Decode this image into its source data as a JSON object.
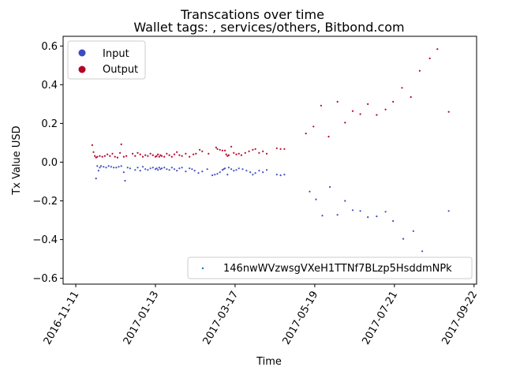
{
  "chart_data": {
    "type": "scatter",
    "title": "Transcations over time",
    "subtitle": "Wallet tags: , services/others, Bitbond.com",
    "xlabel": "Time",
    "ylabel": "Tx Value USD",
    "xlim": [
      "2016-11-01",
      "2017-09-24"
    ],
    "ylim": [
      -0.63,
      0.65
    ],
    "x_ticks": [
      "2016-11-11",
      "2017-01-13",
      "2017-03-17",
      "2017-05-19",
      "2017-07-21",
      "2017-09-22"
    ],
    "y_ticks": [
      -0.6,
      -0.4,
      -0.2,
      0.0,
      0.2,
      0.4,
      0.6
    ],
    "y_tick_labels": [
      "−0.6",
      "−0.4",
      "−0.2",
      "0.0",
      "0.2",
      "0.4",
      "0.6"
    ],
    "grid": false,
    "legend_series": {
      "placement": "top-left",
      "entries": [
        {
          "label": "Input",
          "color": "#3b4cc0"
        },
        {
          "label": "Output",
          "color": "#b40426"
        }
      ]
    },
    "legend_wallet": {
      "placement": "bottom-right",
      "label": "146nwWVzwsgVXeH1TTNf7BLzp5HsddmNPk",
      "color": "#1f77b4"
    },
    "series": [
      {
        "name": "Input",
        "color": "#3b4cc0",
        "points": [
          {
            "x": "2016-11-27",
            "y": -0.084
          },
          {
            "x": "2016-11-28",
            "y": -0.02
          },
          {
            "x": "2016-11-29",
            "y": -0.044
          },
          {
            "x": "2016-11-30",
            "y": -0.028
          },
          {
            "x": "2016-12-01",
            "y": -0.02
          },
          {
            "x": "2016-12-03",
            "y": -0.024
          },
          {
            "x": "2016-12-05",
            "y": -0.028
          },
          {
            "x": "2016-12-07",
            "y": -0.02
          },
          {
            "x": "2016-12-09",
            "y": -0.024
          },
          {
            "x": "2016-12-11",
            "y": -0.028
          },
          {
            "x": "2016-12-13",
            "y": -0.028
          },
          {
            "x": "2016-12-15",
            "y": -0.024
          },
          {
            "x": "2016-12-17",
            "y": -0.02
          },
          {
            "x": "2016-12-19",
            "y": -0.052
          },
          {
            "x": "2016-12-20",
            "y": -0.096
          },
          {
            "x": "2016-12-22",
            "y": -0.028
          },
          {
            "x": "2016-12-24",
            "y": -0.032
          },
          {
            "x": "2016-12-28",
            "y": -0.04
          },
          {
            "x": "2016-12-30",
            "y": -0.028
          },
          {
            "x": "2017-01-01",
            "y": -0.044
          },
          {
            "x": "2017-01-03",
            "y": -0.024
          },
          {
            "x": "2017-01-05",
            "y": -0.036
          },
          {
            "x": "2017-01-07",
            "y": -0.04
          },
          {
            "x": "2017-01-09",
            "y": -0.032
          },
          {
            "x": "2017-01-11",
            "y": -0.028
          },
          {
            "x": "2017-01-13",
            "y": -0.036
          },
          {
            "x": "2017-01-14",
            "y": -0.032
          },
          {
            "x": "2017-01-15",
            "y": -0.04
          },
          {
            "x": "2017-01-16",
            "y": -0.028
          },
          {
            "x": "2017-01-17",
            "y": -0.036
          },
          {
            "x": "2017-01-18",
            "y": -0.032
          },
          {
            "x": "2017-01-20",
            "y": -0.028
          },
          {
            "x": "2017-01-22",
            "y": -0.036
          },
          {
            "x": "2017-01-24",
            "y": -0.04
          },
          {
            "x": "2017-01-26",
            "y": -0.028
          },
          {
            "x": "2017-01-28",
            "y": -0.036
          },
          {
            "x": "2017-01-30",
            "y": -0.044
          },
          {
            "x": "2017-02-01",
            "y": -0.032
          },
          {
            "x": "2017-02-03",
            "y": -0.028
          },
          {
            "x": "2017-02-06",
            "y": -0.048
          },
          {
            "x": "2017-02-09",
            "y": -0.032
          },
          {
            "x": "2017-02-11",
            "y": -0.036
          },
          {
            "x": "2017-02-13",
            "y": -0.044
          },
          {
            "x": "2017-02-16",
            "y": -0.056
          },
          {
            "x": "2017-02-19",
            "y": -0.048
          },
          {
            "x": "2017-02-23",
            "y": -0.036
          },
          {
            "x": "2017-02-27",
            "y": -0.068
          },
          {
            "x": "2017-03-01",
            "y": -0.064
          },
          {
            "x": "2017-03-03",
            "y": -0.06
          },
          {
            "x": "2017-03-05",
            "y": -0.052
          },
          {
            "x": "2017-03-07",
            "y": -0.04
          },
          {
            "x": "2017-03-08",
            "y": -0.036
          },
          {
            "x": "2017-03-09",
            "y": -0.032
          },
          {
            "x": "2017-03-11",
            "y": -0.064
          },
          {
            "x": "2017-03-12",
            "y": -0.028
          },
          {
            "x": "2017-03-14",
            "y": -0.036
          },
          {
            "x": "2017-03-16",
            "y": -0.044
          },
          {
            "x": "2017-03-18",
            "y": -0.04
          },
          {
            "x": "2017-03-20",
            "y": -0.032
          },
          {
            "x": "2017-03-23",
            "y": -0.036
          },
          {
            "x": "2017-03-26",
            "y": -0.044
          },
          {
            "x": "2017-03-29",
            "y": -0.052
          },
          {
            "x": "2017-03-31",
            "y": -0.064
          },
          {
            "x": "2017-04-02",
            "y": -0.056
          },
          {
            "x": "2017-04-05",
            "y": -0.044
          },
          {
            "x": "2017-04-08",
            "y": -0.052
          },
          {
            "x": "2017-04-11",
            "y": -0.04
          },
          {
            "x": "2017-04-19",
            "y": -0.064
          },
          {
            "x": "2017-04-22",
            "y": -0.068
          },
          {
            "x": "2017-04-25",
            "y": -0.064
          },
          {
            "x": "2017-05-15",
            "y": -0.152
          },
          {
            "x": "2017-05-20",
            "y": -0.192
          },
          {
            "x": "2017-05-25",
            "y": -0.276
          },
          {
            "x": "2017-05-31",
            "y": -0.128
          },
          {
            "x": "2017-06-06",
            "y": -0.272
          },
          {
            "x": "2017-06-12",
            "y": -0.2
          },
          {
            "x": "2017-06-18",
            "y": -0.248
          },
          {
            "x": "2017-06-24",
            "y": -0.252
          },
          {
            "x": "2017-06-30",
            "y": -0.284
          },
          {
            "x": "2017-07-07",
            "y": -0.28
          },
          {
            "x": "2017-07-14",
            "y": -0.256
          },
          {
            "x": "2017-07-20",
            "y": -0.304
          },
          {
            "x": "2017-07-28",
            "y": -0.396
          },
          {
            "x": "2017-08-05",
            "y": -0.356
          },
          {
            "x": "2017-08-12",
            "y": -0.46
          },
          {
            "x": "2017-09-02",
            "y": -0.252
          }
        ]
      },
      {
        "name": "Output",
        "color": "#b40426",
        "points": [
          {
            "x": "2016-11-24",
            "y": 0.088
          },
          {
            "x": "2016-11-25",
            "y": 0.052
          },
          {
            "x": "2016-11-26",
            "y": 0.032
          },
          {
            "x": "2016-11-27",
            "y": 0.024
          },
          {
            "x": "2016-11-28",
            "y": 0.028
          },
          {
            "x": "2016-11-30",
            "y": 0.032
          },
          {
            "x": "2016-12-02",
            "y": 0.028
          },
          {
            "x": "2016-12-04",
            "y": 0.032
          },
          {
            "x": "2016-12-06",
            "y": 0.04
          },
          {
            "x": "2016-12-08",
            "y": 0.032
          },
          {
            "x": "2016-12-10",
            "y": 0.044
          },
          {
            "x": "2016-12-12",
            "y": 0.028
          },
          {
            "x": "2016-12-14",
            "y": 0.024
          },
          {
            "x": "2016-12-16",
            "y": 0.048
          },
          {
            "x": "2016-12-17",
            "y": 0.092
          },
          {
            "x": "2016-12-19",
            "y": 0.028
          },
          {
            "x": "2016-12-21",
            "y": 0.032
          },
          {
            "x": "2016-12-26",
            "y": 0.044
          },
          {
            "x": "2016-12-28",
            "y": 0.032
          },
          {
            "x": "2016-12-30",
            "y": 0.048
          },
          {
            "x": "2017-01-01",
            "y": 0.04
          },
          {
            "x": "2017-01-03",
            "y": 0.028
          },
          {
            "x": "2017-01-05",
            "y": 0.036
          },
          {
            "x": "2017-01-07",
            "y": 0.032
          },
          {
            "x": "2017-01-09",
            "y": 0.044
          },
          {
            "x": "2017-01-11",
            "y": 0.036
          },
          {
            "x": "2017-01-13",
            "y": 0.028
          },
          {
            "x": "2017-01-14",
            "y": 0.032
          },
          {
            "x": "2017-01-15",
            "y": 0.04
          },
          {
            "x": "2017-01-16",
            "y": 0.028
          },
          {
            "x": "2017-01-17",
            "y": 0.036
          },
          {
            "x": "2017-01-18",
            "y": 0.032
          },
          {
            "x": "2017-01-20",
            "y": 0.028
          },
          {
            "x": "2017-01-22",
            "y": 0.044
          },
          {
            "x": "2017-01-24",
            "y": 0.036
          },
          {
            "x": "2017-01-26",
            "y": 0.028
          },
          {
            "x": "2017-01-28",
            "y": 0.04
          },
          {
            "x": "2017-01-30",
            "y": 0.052
          },
          {
            "x": "2017-02-01",
            "y": 0.036
          },
          {
            "x": "2017-02-03",
            "y": 0.032
          },
          {
            "x": "2017-02-06",
            "y": 0.044
          },
          {
            "x": "2017-02-09",
            "y": 0.028
          },
          {
            "x": "2017-02-12",
            "y": 0.04
          },
          {
            "x": "2017-02-14",
            "y": 0.044
          },
          {
            "x": "2017-02-17",
            "y": 0.064
          },
          {
            "x": "2017-02-19",
            "y": 0.056
          },
          {
            "x": "2017-02-24",
            "y": 0.044
          },
          {
            "x": "2017-03-02",
            "y": 0.076
          },
          {
            "x": "2017-03-03",
            "y": 0.068
          },
          {
            "x": "2017-03-05",
            "y": 0.064
          },
          {
            "x": "2017-03-07",
            "y": 0.06
          },
          {
            "x": "2017-03-09",
            "y": 0.06
          },
          {
            "x": "2017-03-10",
            "y": 0.04
          },
          {
            "x": "2017-03-11",
            "y": 0.032
          },
          {
            "x": "2017-03-12",
            "y": 0.036
          },
          {
            "x": "2017-03-14",
            "y": 0.08
          },
          {
            "x": "2017-03-16",
            "y": 0.048
          },
          {
            "x": "2017-03-18",
            "y": 0.04
          },
          {
            "x": "2017-03-20",
            "y": 0.044
          },
          {
            "x": "2017-03-22",
            "y": 0.036
          },
          {
            "x": "2017-03-25",
            "y": 0.048
          },
          {
            "x": "2017-03-28",
            "y": 0.056
          },
          {
            "x": "2017-03-31",
            "y": 0.064
          },
          {
            "x": "2017-04-02",
            "y": 0.068
          },
          {
            "x": "2017-04-05",
            "y": 0.048
          },
          {
            "x": "2017-04-08",
            "y": 0.056
          },
          {
            "x": "2017-04-11",
            "y": 0.044
          },
          {
            "x": "2017-04-19",
            "y": 0.072
          },
          {
            "x": "2017-04-22",
            "y": 0.068
          },
          {
            "x": "2017-04-25",
            "y": 0.068
          },
          {
            "x": "2017-05-12",
            "y": 0.148
          },
          {
            "x": "2017-05-18",
            "y": 0.184
          },
          {
            "x": "2017-05-24",
            "y": 0.292
          },
          {
            "x": "2017-05-30",
            "y": 0.132
          },
          {
            "x": "2017-06-06",
            "y": 0.312
          },
          {
            "x": "2017-06-12",
            "y": 0.204
          },
          {
            "x": "2017-06-18",
            "y": 0.264
          },
          {
            "x": "2017-06-24",
            "y": 0.248
          },
          {
            "x": "2017-06-30",
            "y": 0.3
          },
          {
            "x": "2017-07-07",
            "y": 0.244
          },
          {
            "x": "2017-07-14",
            "y": 0.272
          },
          {
            "x": "2017-07-20",
            "y": 0.312
          },
          {
            "x": "2017-07-27",
            "y": 0.384
          },
          {
            "x": "2017-08-03",
            "y": 0.336
          },
          {
            "x": "2017-08-10",
            "y": 0.472
          },
          {
            "x": "2017-08-18",
            "y": 0.536
          },
          {
            "x": "2017-08-24",
            "y": 0.584
          },
          {
            "x": "2017-09-02",
            "y": 0.26
          }
        ]
      }
    ]
  }
}
